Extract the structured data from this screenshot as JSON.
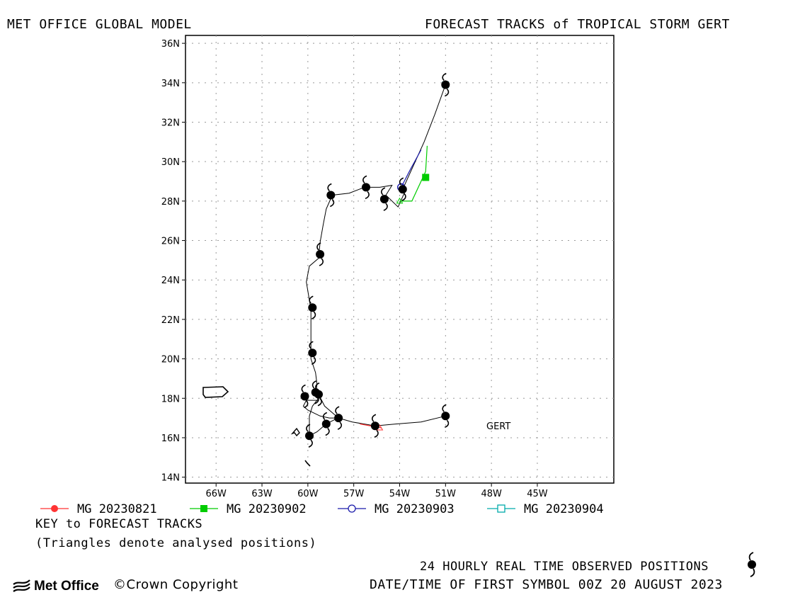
{
  "header": {
    "left": "MET OFFICE GLOBAL MODEL",
    "right": "FORECAST TRACKS of TROPICAL STORM GERT"
  },
  "map": {
    "lon_range": [
      -68,
      -40
    ],
    "lat_range": [
      13.7,
      36.4
    ],
    "lon_ticks": [
      "66W",
      "63W",
      "60W",
      "57W",
      "54W",
      "51W",
      "48W",
      "45W"
    ],
    "lat_ticks": [
      "14N",
      "16N",
      "18N",
      "20N",
      "22N",
      "24N",
      "26N",
      "28N",
      "30N",
      "32N",
      "34N",
      "36N"
    ],
    "storm_label": "GERT"
  },
  "legend": [
    {
      "label": "MG 20230821",
      "color": "#ff3333",
      "marker": "filled-circle"
    },
    {
      "label": "MG 20230902",
      "color": "#00cc00",
      "marker": "filled-square"
    },
    {
      "label": "MG 20230903",
      "color": "#1a1aaa",
      "marker": "open-circle"
    },
    {
      "label": "MG 20230904",
      "color": "#00aaaa",
      "marker": "open-square"
    }
  ],
  "key": {
    "title": "KEY to FORECAST TRACKS",
    "note": "(Triangles denote analysed positions)"
  },
  "footer": {
    "observed": "24 HOURLY REAL TIME OBSERVED POSITIONS",
    "datetime": "DATE/TIME OF FIRST SYMBOL 00Z 20 AUGUST 2023",
    "copyright": "©Crown Copyright",
    "logo_text": "Met Office"
  },
  "observed_track": [
    [
      -51.0,
      17.1
    ],
    [
      -55.6,
      16.6
    ],
    [
      -58.0,
      17.0
    ],
    [
      -58.8,
      16.7
    ],
    [
      -59.9,
      16.1
    ],
    [
      -60.2,
      18.1
    ],
    [
      -59.3,
      18.2
    ],
    [
      -59.5,
      18.3
    ],
    [
      -59.7,
      20.3
    ],
    [
      -59.7,
      22.6
    ],
    [
      -59.2,
      25.3
    ],
    [
      -58.5,
      28.3
    ],
    [
      -56.2,
      28.7
    ],
    [
      -55.0,
      28.1
    ],
    [
      -53.8,
      28.6
    ],
    [
      -51.0,
      33.9
    ]
  ],
  "forecast_tracks": [
    {
      "name": "MG 20230821",
      "color": "#ff3333",
      "points": [
        [
          -56.6,
          16.7
        ],
        [
          -55.2,
          16.5
        ]
      ]
    },
    {
      "name": "MG 20230902",
      "color": "#00cc00",
      "points": [
        [
          -54.0,
          28.0
        ],
        [
          -53.2,
          28.0
        ],
        [
          -52.3,
          29.5
        ],
        [
          -52.2,
          30.8
        ]
      ]
    },
    {
      "name": "MG 20230903",
      "color": "#1a1aaa",
      "points": [
        [
          -53.9,
          28.7
        ],
        [
          -53.3,
          29.6
        ],
        [
          -52.6,
          30.6
        ]
      ]
    },
    {
      "name": "MG 20230904",
      "color": "#00aaaa",
      "points": [
        [
          -51.0,
          33.9
        ],
        [
          -50.9,
          34.0
        ]
      ]
    }
  ],
  "dated_track_segments": [
    [
      [
        -51.0,
        17.1
      ],
      [
        -52.6,
        16.8
      ],
      [
        -54.2,
        16.7
      ],
      [
        -55.6,
        16.6
      ],
      [
        -57.1,
        16.8
      ],
      [
        -58.0,
        17.0
      ],
      [
        -58.6,
        17.0
      ],
      [
        -59.2,
        17.1
      ],
      [
        -60.0,
        17.4
      ],
      [
        -60.3,
        17.6
      ],
      [
        -60.1,
        17.9
      ],
      [
        -59.3,
        17.9
      ],
      [
        -59.5,
        18.2
      ],
      [
        -59.4,
        18.7
      ],
      [
        -59.5,
        19.3
      ],
      [
        -59.8,
        20.0
      ],
      [
        -59.8,
        20.8
      ],
      [
        -59.8,
        21.6
      ],
      [
        -59.8,
        22.5
      ],
      [
        -60.1,
        23.9
      ],
      [
        -59.9,
        24.7
      ],
      [
        -59.3,
        25.1
      ],
      [
        -59.2,
        25.9
      ],
      [
        -59.0,
        26.8
      ],
      [
        -58.8,
        27.6
      ],
      [
        -58.4,
        28.3
      ],
      [
        -57.3,
        28.4
      ],
      [
        -56.3,
        28.7
      ],
      [
        -55.3,
        28.7
      ],
      [
        -54.5,
        28.8
      ],
      [
        -54.9,
        28.3
      ],
      [
        -54.1,
        27.7
      ],
      [
        -53.7,
        28.4
      ],
      [
        -53.8,
        28.6
      ],
      [
        -52.4,
        31.0
      ],
      [
        -51.7,
        32.4
      ],
      [
        -51.0,
        33.9
      ]
    ],
    [
      [
        -59.9,
        16.1
      ],
      [
        -59.9,
        16.5
      ],
      [
        -59.9,
        17.1
      ],
      [
        -59.7,
        17.6
      ],
      [
        -59.3,
        18.0
      ]
    ],
    [
      [
        -59.9,
        16.1
      ],
      [
        -59.4,
        16.3
      ],
      [
        -58.8,
        16.7
      ],
      [
        -58.3,
        16.9
      ],
      [
        -58.0,
        17.0
      ]
    ],
    [
      [
        -59.3,
        18.2
      ],
      [
        -58.9,
        17.6
      ],
      [
        -58.0,
        17.0
      ]
    ]
  ]
}
